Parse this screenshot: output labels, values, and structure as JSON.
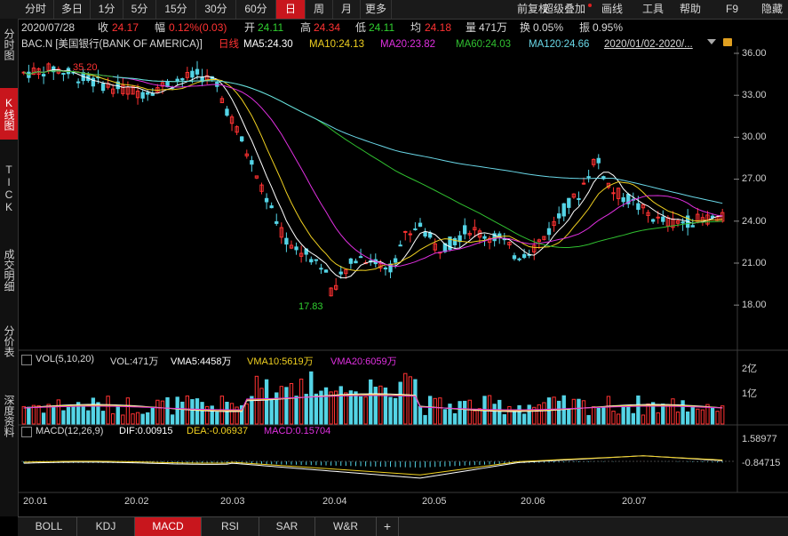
{
  "toolbar": {
    "items": [
      "分时",
      "多日",
      "1分",
      "5分",
      "15分",
      "30分",
      "60分",
      "日",
      "周",
      "月",
      "更多"
    ],
    "active": "日",
    "right_items": [
      "前复权",
      "超级叠加",
      "画线",
      "工具",
      "帮助",
      "F9",
      "隐藏"
    ]
  },
  "sidebar": {
    "items": [
      "分时图",
      "K线图",
      "TICK",
      "成交明细",
      "分价表",
      "深度资料"
    ],
    "active": "K线图"
  },
  "quote": {
    "date": "2020/07/28",
    "close_label": "收",
    "close": "24.17",
    "change_label": "幅",
    "change": "0.12%(0.03)",
    "open_label": "开",
    "open": "24.11",
    "high_label": "高",
    "high": "24.34",
    "low_label": "低",
    "low": "24.11",
    "avg_label": "均",
    "avg": "24.18",
    "volume_label": "量",
    "volume": "471万",
    "turnover_label": "换",
    "turnover": "0.05%",
    "amplitude_label": "振",
    "amplitude": "0.95%"
  },
  "ma_line": {
    "symbol": "BAC.N [美国银行(BANK OF AMERICA)]",
    "period": "日线",
    "ma5": "MA5:24.30",
    "ma10": "MA10:24.13",
    "ma20": "MA20:23.82",
    "ma60": "MA60:24.03",
    "ma120": "MA120:24.66",
    "range": "2020/01/02-2020/...",
    "high_mark": "35.20",
    "low_mark": "17.83"
  },
  "price_axis": [
    "36.00",
    "33.00",
    "30.00",
    "27.00",
    "24.00",
    "21.00",
    "18.00"
  ],
  "volume_panel": {
    "title": "VOL(5,10,20)",
    "vol": "VOL:471万",
    "vma5": "VMA5:4458万",
    "vma10": "VMA10:5619万",
    "vma20": "VMA20:6059万",
    "axis": [
      "2亿",
      "1亿"
    ]
  },
  "macd_panel": {
    "title": "MACD(12,26,9)",
    "dif": "DIF:0.00915",
    "dea": "DEA:-0.06937",
    "macd": "MACD:0.15704",
    "axis": [
      "1.58977",
      "-0.84715"
    ]
  },
  "date_axis": [
    "20.01",
    "20.02",
    "20.03",
    "20.04",
    "20.05",
    "20.06",
    "20.07"
  ],
  "bottom_tabs": [
    "BOLL",
    "KDJ",
    "MACD",
    "RSI",
    "SAR",
    "W&R",
    "+"
  ],
  "bottom_active": "MACD",
  "colors": {
    "up": "#ff3232",
    "down": "#54d4e6",
    "ma5": "#ffffff",
    "ma10": "#f0d020",
    "ma20": "#e030e0",
    "ma60": "#30c030",
    "ma120": "#6ad8e8",
    "active": "#c8161d"
  }
}
